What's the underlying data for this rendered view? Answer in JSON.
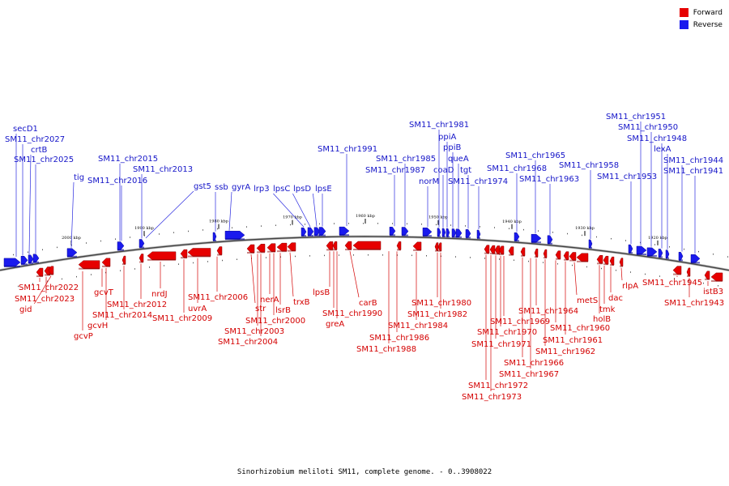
{
  "legend": {
    "forward": {
      "label": "Forward",
      "color": "#e60000"
    },
    "reverse": {
      "label": "Reverse",
      "color": "#1a1aee"
    }
  },
  "caption": "Sinorhizobium meliloti SM11, complete genome. - 0..3908022",
  "ticks": [
    "2000 kbp",
    "1990 kbp",
    "1980 kbp",
    "1970 kbp",
    "1960 kbp",
    "1950 kbp",
    "1940 kbp",
    "1930 kbp",
    "1920 kbp"
  ],
  "reverse_genes": [
    "secD1",
    "SM11_chr2027",
    "crtB",
    "SM11_chr2025",
    "tig",
    "SM11_chr2016",
    "SM11_chr2015",
    "SM11_chr2013",
    "gst5",
    "ssb",
    "gyrA",
    "lrp3",
    "lpsC",
    "lpsD",
    "lpsE",
    "SM11_chr1991",
    "SM11_chr1987",
    "SM11_chr1985",
    "norM",
    "SM11_chr1981",
    "coaD",
    "ppiA",
    "ppiB",
    "queA",
    "tgt",
    "SM11_chr1974",
    "SM11_chr1968",
    "SM11_chr1965",
    "SM11_chr1963",
    "SM11_chr1958",
    "SM11_chr1953",
    "SM11_chr1951",
    "SM11_chr1950",
    "SM11_chr1948",
    "lexA",
    "SM11_chr1944",
    "SM11_chr1941"
  ],
  "forward_genes": [
    "SM11_chr2022",
    "SM11_chr2023",
    "gid",
    "gcvT",
    "gcvH",
    "gcvP",
    "SM11_chr2014",
    "SM11_chr2012",
    "nrdJ",
    "SM11_chr2009",
    "uvrA",
    "SM11_chr2006",
    "str",
    "SM11_chr2003",
    "SM11_chr2004",
    "nerA",
    "SM11_chr2000",
    "lsrB",
    "trxB",
    "lpsB",
    "SM11_chr1990",
    "greA",
    "carB",
    "SM11_chr1986",
    "SM11_chr1988",
    "SM11_chr1984",
    "SM11_chr1980",
    "SM11_chr1982",
    "SM11_chr1972",
    "SM11_chr1973",
    "SM11_chr1971",
    "SM11_chr1970",
    "SM11_chr1969",
    "SM11_chr1966",
    "SM11_chr1967",
    "SM11_chr1964",
    "SM11_chr1962",
    "SM11_chr1960",
    "SM11_chr1961",
    "metS",
    "holB",
    "tmk",
    "dac",
    "rlpA",
    "SM11_chr1945",
    "SM11_chr1943",
    "istB3"
  ]
}
